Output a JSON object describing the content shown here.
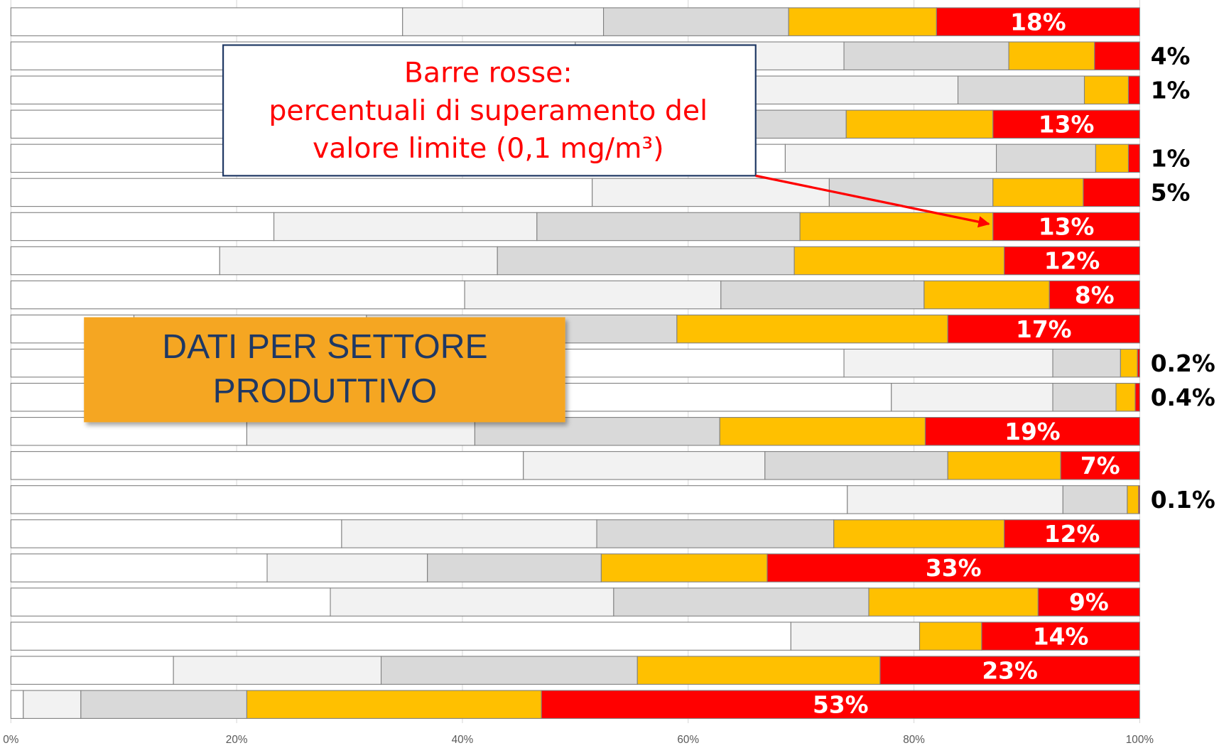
{
  "chart_data": {
    "type": "bar",
    "orientation": "horizontal",
    "stacked": true,
    "categories": [
      null,
      null,
      null,
      null,
      null,
      null,
      null,
      null,
      null,
      null,
      null,
      null,
      null,
      null,
      null,
      null,
      null,
      null,
      null,
      null,
      null
    ],
    "series": [
      {
        "color": "#ffffff",
        "values": [
          34.7,
          50,
          55,
          45,
          68.6,
          51.5,
          23.3,
          18.5,
          40.2,
          10.9,
          73.8,
          78,
          20.9,
          45.4,
          74.1,
          29.3,
          22.7,
          28.3,
          69.1,
          14.4,
          1.1
        ]
      },
      {
        "color": "#f2f2f2",
        "values": [
          17.8,
          23.8,
          28.9,
          20,
          18.7,
          21,
          23.3,
          24.6,
          22.7,
          20.6,
          18.5,
          14.3,
          20.2,
          21.4,
          19.1,
          22.6,
          14.2,
          25.1,
          11.4,
          18.4,
          5.1
        ]
      },
      {
        "color": "#d9d9d9",
        "values": [
          16.4,
          14.6,
          11.2,
          9,
          8.8,
          14.5,
          23.3,
          26.3,
          18,
          27.5,
          6,
          5.6,
          21.7,
          16.2,
          5.7,
          21,
          15.4,
          22.6,
          0,
          22.7,
          14.7
        ]
      },
      {
        "color": "#ffc000",
        "values": [
          13.1,
          7.6,
          3.9,
          13,
          2.9,
          8,
          17.1,
          18.6,
          11.1,
          24,
          1.5,
          1.7,
          18.2,
          10,
          1,
          15.1,
          14.7,
          15,
          5.5,
          21.5,
          26.1
        ]
      },
      {
        "color": "#ff0000",
        "values": [
          18,
          4,
          1,
          13,
          1,
          5,
          13,
          12,
          8,
          17,
          0.2,
          0.4,
          19,
          7,
          0.1,
          12,
          33,
          9,
          14,
          23,
          53
        ],
        "value_labels": [
          "18%",
          "4%",
          "1%",
          "13%",
          "1%",
          "5%",
          "13%",
          "12%",
          "8%",
          "17%",
          "0.2%",
          "0.4%",
          "19%",
          "7%",
          "0.1%",
          "12%",
          "33%",
          "9%",
          "14%",
          "23%",
          "53%"
        ]
      }
    ],
    "xlim": [
      0,
      100
    ],
    "xticks": [
      {
        "value": 0,
        "label": "0%"
      },
      {
        "value": 20,
        "label": "20%"
      },
      {
        "value": 40,
        "label": "40%"
      },
      {
        "value": 60,
        "label": "60%"
      },
      {
        "value": 80,
        "label": "80%"
      },
      {
        "value": 100,
        "label": "100%"
      }
    ],
    "grid": true,
    "annotations": {
      "note": [
        "Barre rosse:",
        "percentuali di superamento del",
        "valore limite (0,1 mg/m³)"
      ],
      "badge": [
        "DATI PER SETTORE",
        "PRODUTTIVO"
      ]
    }
  }
}
